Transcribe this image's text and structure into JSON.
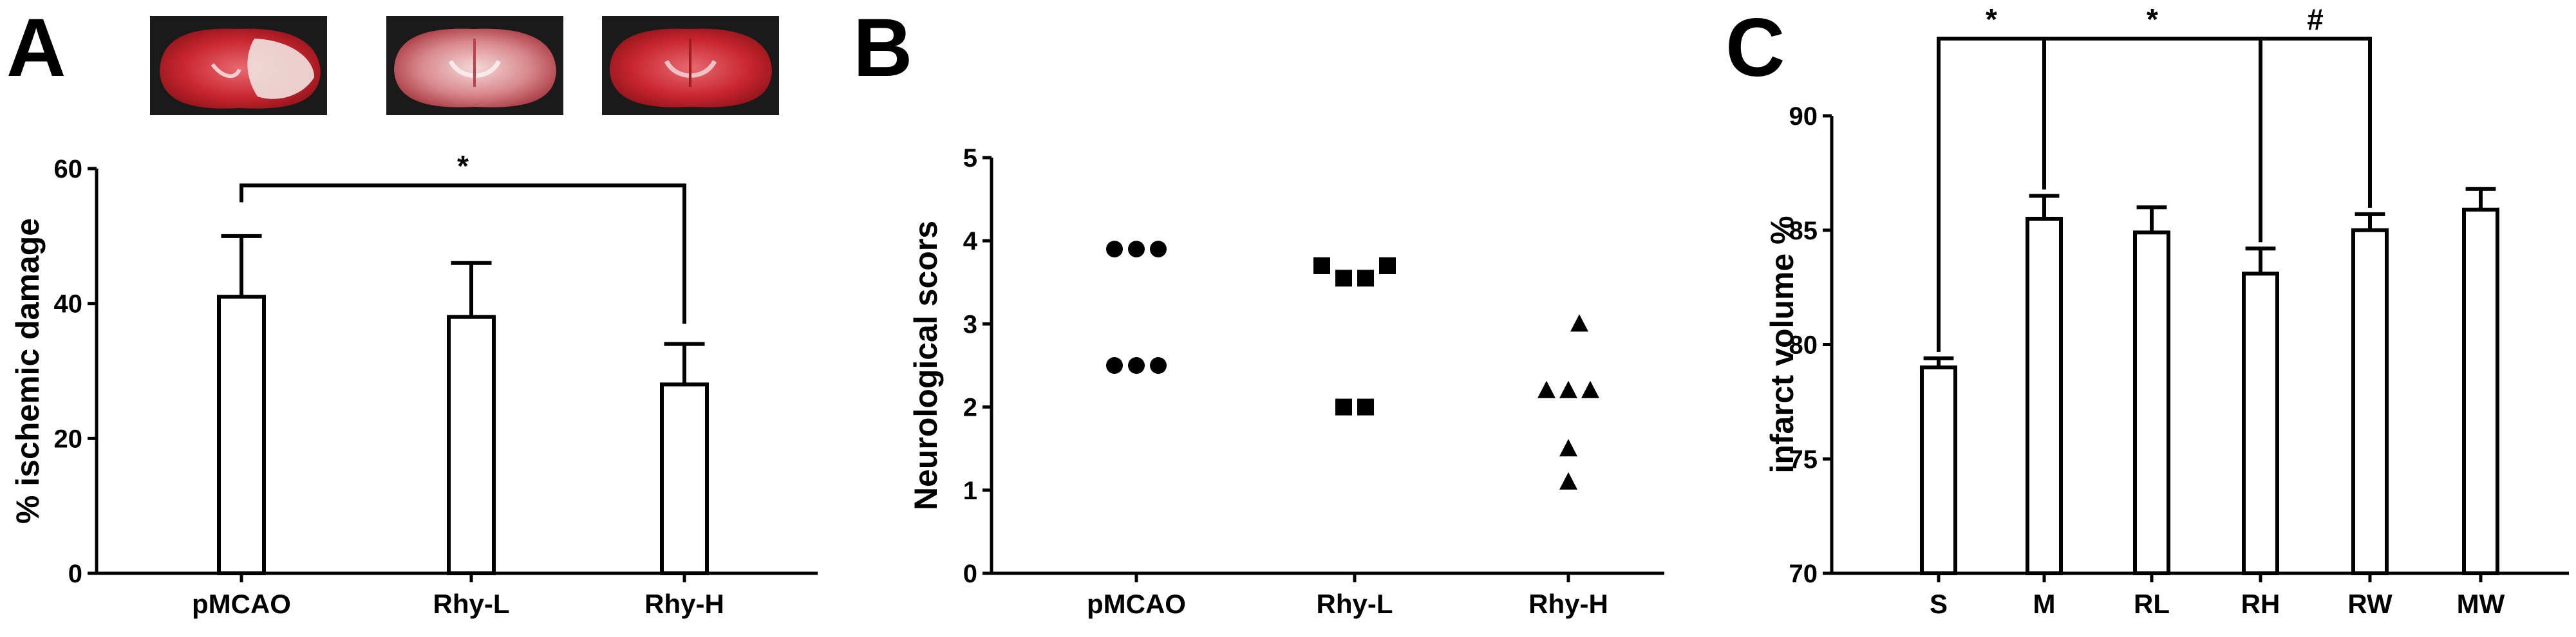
{
  "panels": [
    {
      "letter": "A"
    },
    {
      "letter": "B"
    },
    {
      "letter": "C"
    }
  ],
  "chart_data": [
    {
      "type": "bar",
      "panel": "A",
      "ylabel": "% ischemic damage",
      "xlabel": "",
      "categories": [
        "pMCAO",
        "Rhy-L",
        "Rhy-H"
      ],
      "values": [
        41,
        38,
        28
      ],
      "errors": [
        9,
        8,
        6
      ],
      "ylim": [
        0,
        60
      ],
      "yticks": [
        0,
        20,
        40,
        60
      ],
      "significance": [
        {
          "from": 0,
          "to": 2,
          "label": "*"
        }
      ],
      "images": [
        "brain-slice-pMCAO",
        "brain-slice-Rhy-L",
        "brain-slice-Rhy-H"
      ],
      "grid": false
    },
    {
      "type": "scatter",
      "panel": "B",
      "ylabel": "Neurological scors",
      "xlabel": "",
      "categories": [
        "pMCAO",
        "Rhy-L",
        "Rhy-H"
      ],
      "ylim": [
        0,
        5
      ],
      "yticks": [
        0,
        1,
        2,
        3,
        4,
        5
      ],
      "series": [
        {
          "category": "pMCAO",
          "marker": "circle",
          "points": [
            {
              "offset": -1,
              "y": 3.9
            },
            {
              "offset": 0,
              "y": 3.9
            },
            {
              "offset": 1,
              "y": 3.9
            },
            {
              "offset": -1,
              "y": 2.5
            },
            {
              "offset": 0,
              "y": 2.5
            },
            {
              "offset": 1,
              "y": 2.5
            }
          ]
        },
        {
          "category": "Rhy-L",
          "marker": "square",
          "points": [
            {
              "offset": -1.5,
              "y": 3.7
            },
            {
              "offset": -0.5,
              "y": 3.55
            },
            {
              "offset": 0.5,
              "y": 3.55
            },
            {
              "offset": 1.5,
              "y": 3.7
            },
            {
              "offset": -0.5,
              "y": 2.0
            },
            {
              "offset": 0.5,
              "y": 2.0
            }
          ]
        },
        {
          "category": "Rhy-H",
          "marker": "triangle",
          "points": [
            {
              "offset": 0.5,
              "y": 3.0
            },
            {
              "offset": -1,
              "y": 2.2
            },
            {
              "offset": 0,
              "y": 2.2
            },
            {
              "offset": 1,
              "y": 2.2
            },
            {
              "offset": 0,
              "y": 1.5
            },
            {
              "offset": 0,
              "y": 1.1
            }
          ]
        }
      ],
      "grid": false
    },
    {
      "type": "bar",
      "panel": "C",
      "ylabel": "infarct volume %",
      "xlabel": "",
      "categories": [
        "S",
        "M",
        "RL",
        "RH",
        "RW",
        "MW"
      ],
      "values": [
        79.0,
        85.5,
        84.9,
        83.1,
        85.0,
        85.9
      ],
      "errors": [
        0.4,
        1.0,
        1.1,
        1.1,
        0.7,
        0.9
      ],
      "ylim": [
        70,
        90
      ],
      "yticks": [
        70,
        75,
        80,
        85,
        90
      ],
      "significance": [
        {
          "from": 0,
          "to": 1,
          "label": "*"
        },
        {
          "from": 1,
          "to": 3,
          "label": "*"
        },
        {
          "from": 3,
          "to": 4,
          "label": "#"
        }
      ],
      "grid": false
    }
  ]
}
